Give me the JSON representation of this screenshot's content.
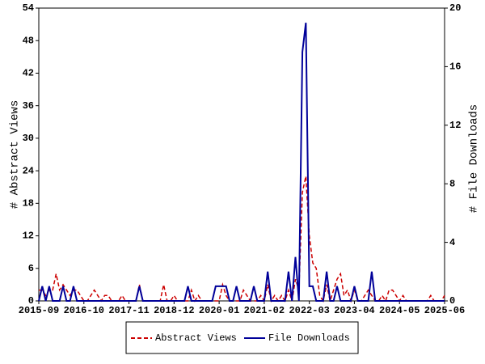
{
  "chart_data": {
    "type": "line",
    "y_label": "# Abstract Views",
    "y2_label": "# File Downloads",
    "x": [
      "2015-09",
      "2015-10",
      "2015-11",
      "2015-12",
      "2016-01",
      "2016-02",
      "2016-03",
      "2016-04",
      "2016-05",
      "2016-06",
      "2016-07",
      "2016-08",
      "2016-09",
      "2016-10",
      "2016-11",
      "2016-12",
      "2017-01",
      "2017-02",
      "2017-03",
      "2017-04",
      "2017-05",
      "2017-06",
      "2017-07",
      "2017-08",
      "2017-09",
      "2017-10",
      "2017-11",
      "2017-12",
      "2018-01",
      "2018-02",
      "2018-03",
      "2018-04",
      "2018-05",
      "2018-06",
      "2018-07",
      "2018-08",
      "2018-09",
      "2018-10",
      "2018-11",
      "2018-12",
      "2019-01",
      "2019-02",
      "2019-03",
      "2019-04",
      "2019-05",
      "2019-06",
      "2019-07",
      "2019-08",
      "2019-09",
      "2019-10",
      "2019-11",
      "2019-12",
      "2020-01",
      "2020-02",
      "2020-03",
      "2020-04",
      "2020-05",
      "2020-06",
      "2020-07",
      "2020-08",
      "2020-09",
      "2020-10",
      "2020-11",
      "2020-12",
      "2021-01",
      "2021-02",
      "2021-03",
      "2021-04",
      "2021-05",
      "2021-06",
      "2021-07",
      "2021-08",
      "2021-09",
      "2021-10",
      "2021-11",
      "2021-12",
      "2022-01",
      "2022-02",
      "2022-03",
      "2022-04",
      "2022-05",
      "2022-06",
      "2022-07",
      "2022-08",
      "2022-09",
      "2022-10",
      "2022-11",
      "2022-12",
      "2023-01",
      "2023-02",
      "2023-03",
      "2023-04",
      "2023-05",
      "2023-06",
      "2023-07",
      "2023-08",
      "2023-09",
      "2023-10",
      "2023-11",
      "2023-12",
      "2024-01",
      "2024-02",
      "2024-03",
      "2024-04",
      "2024-05",
      "2024-06",
      "2024-07",
      "2024-08",
      "2024-09",
      "2024-10",
      "2024-11",
      "2024-12",
      "2025-01",
      "2025-02",
      "2025-03",
      "2025-04",
      "2025-05",
      "2025-06"
    ],
    "series": [
      {
        "name": "Abstract Views",
        "color": "#cc0000",
        "dash": "dashed",
        "values": [
          2,
          2,
          1,
          2,
          2,
          5,
          2,
          3,
          2,
          1,
          2,
          2,
          1,
          0,
          0,
          1,
          2,
          1,
          0,
          1,
          1,
          0,
          0,
          0,
          1,
          0,
          0,
          0,
          0,
          3,
          0,
          0,
          0,
          0,
          0,
          0,
          3,
          0,
          0,
          1,
          0,
          0,
          0,
          0,
          2,
          0,
          1,
          0,
          0,
          0,
          0,
          0,
          0,
          3,
          1,
          0,
          0,
          0,
          0,
          2,
          1,
          0,
          0,
          0,
          1,
          0,
          3,
          0,
          1,
          0,
          1,
          0,
          2,
          0,
          4,
          2,
          20,
          23,
          12,
          7,
          6,
          1,
          0,
          3,
          0,
          2,
          4,
          5,
          1,
          2,
          0,
          2,
          0,
          0,
          1,
          2,
          1,
          0,
          0,
          1,
          0,
          2,
          2,
          1,
          0,
          1,
          0,
          0,
          0,
          0,
          0,
          0,
          0,
          1,
          0,
          0,
          0,
          1
        ]
      },
      {
        "name": "File Downloads",
        "color": "#000099",
        "dash": "solid",
        "axis": "y2",
        "values": [
          0,
          1,
          0,
          1,
          0,
          0,
          0,
          1,
          0,
          0,
          1,
          0,
          0,
          0,
          0,
          0,
          0,
          0,
          0,
          0,
          0,
          0,
          0,
          0,
          0,
          0,
          0,
          0,
          0,
          1,
          0,
          0,
          0,
          0,
          0,
          0,
          0,
          0,
          0,
          0,
          0,
          0,
          0,
          1,
          0,
          0,
          0,
          0,
          0,
          0,
          0,
          1,
          1,
          1,
          1,
          0,
          0,
          1,
          0,
          0,
          0,
          0,
          1,
          0,
          0,
          0,
          2,
          0,
          0,
          0,
          0,
          0,
          2,
          0,
          3,
          0,
          17,
          19,
          1,
          1,
          0,
          0,
          0,
          2,
          0,
          0,
          1,
          0,
          0,
          0,
          0,
          1,
          0,
          0,
          0,
          0,
          2,
          0,
          0,
          0,
          0,
          0,
          0,
          0,
          0,
          0,
          0,
          0,
          0,
          0,
          0,
          0,
          0,
          0,
          0,
          0,
          0,
          0
        ]
      }
    ],
    "xlim": [
      "2015-09",
      "2025-06"
    ],
    "xticks": [
      "2015-09",
      "2016-10",
      "2017-11",
      "2018-12",
      "2020-01",
      "2021-02",
      "2022-03",
      "2023-04",
      "2024-05",
      "2025-06"
    ],
    "ylim": [
      0,
      54
    ],
    "yticks": [
      0,
      6,
      12,
      18,
      24,
      30,
      36,
      42,
      48,
      54
    ],
    "y2lim": [
      0,
      20
    ],
    "y2ticks": [
      0,
      4,
      8,
      12,
      16,
      20
    ],
    "legend": "bottom"
  }
}
